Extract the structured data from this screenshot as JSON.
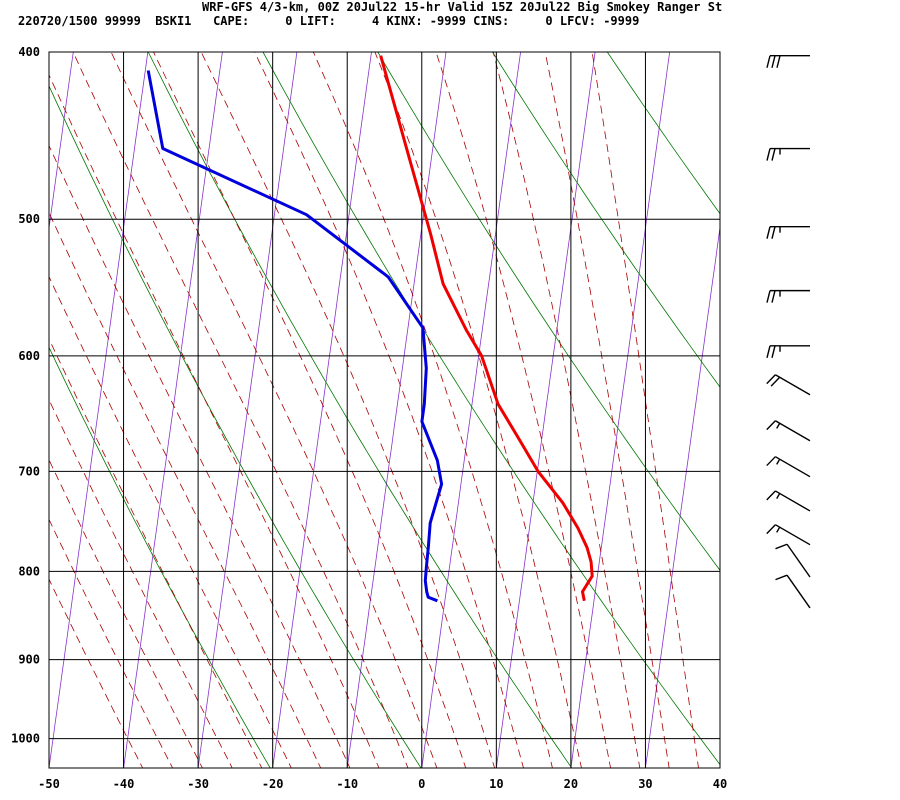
{
  "header": {
    "line1": "WRF-GFS 4/3-km, 00Z 20Jul22 15-hr Valid 15Z 20Jul22 Big Smokey Ranger St",
    "line2": "220720/1500 99999  BSKI1   CAPE:     0 LIFT:     4 KINX: -9999 CINS:     0 LFCV: -9999"
  },
  "chart_data": {
    "type": "line",
    "title": "",
    "xlabel": "",
    "ylabel": "",
    "x_ticks": [
      "-50",
      "-40",
      "-30",
      "-20",
      "-10",
      "0",
      "10",
      "20",
      "30",
      "40"
    ],
    "y_ticks": [
      "400",
      "500",
      "600",
      "700",
      "800",
      "900",
      "1000"
    ],
    "xlim": [
      -50,
      40
    ],
    "ylim_pressure": [
      400,
      1040
    ],
    "log_pressure_axis": true,
    "grid": true,
    "colors": {
      "temperature": "#ee0000",
      "dewpoint": "#0000dd",
      "isotherm": "#8833cc",
      "dry_adiabat": "#007700",
      "moist_adiabat": "#aa0000",
      "wind_barb": "#000000"
    },
    "series": [
      {
        "points": [
          {
            "p": 832,
            "t": 18.7
          },
          {
            "p": 822,
            "t": 18.3
          },
          {
            "p": 805,
            "t": 19.3
          },
          {
            "p": 790,
            "t": 18.9
          },
          {
            "p": 775,
            "t": 18.1
          },
          {
            "p": 755,
            "t": 16.5
          },
          {
            "p": 730,
            "t": 14.0
          },
          {
            "p": 700,
            "t": 10.1
          },
          {
            "p": 670,
            "t": 6.9
          },
          {
            "p": 640,
            "t": 3.5
          },
          {
            "p": 600,
            "t": 0.4
          },
          {
            "p": 580,
            "t": -2.1
          },
          {
            "p": 545,
            "t": -6.1
          },
          {
            "p": 510,
            "t": -8.7
          },
          {
            "p": 455,
            "t": -13.5
          },
          {
            "p": 402,
            "t": -18.7
          }
        ]
      },
      {
        "points": [
          {
            "p": 832,
            "t": -1.0
          },
          {
            "p": 828,
            "t": -2.3
          },
          {
            "p": 822,
            "t": -2.6
          },
          {
            "p": 810,
            "t": -3.0
          },
          {
            "p": 795,
            "t": -3.1
          },
          {
            "p": 775,
            "t": -3.2
          },
          {
            "p": 750,
            "t": -3.4
          },
          {
            "p": 712,
            "t": -2.6
          },
          {
            "p": 690,
            "t": -3.6
          },
          {
            "p": 655,
            "t": -6.4
          },
          {
            "p": 640,
            "t": -6.4
          },
          {
            "p": 610,
            "t": -6.8
          },
          {
            "p": 578,
            "t": -8.0
          },
          {
            "p": 540,
            "t": -13.6
          },
          {
            "p": 497,
            "t": -25.7
          },
          {
            "p": 455,
            "t": -46.2
          },
          {
            "p": 410,
            "t": -49.6
          }
        ]
      }
    ],
    "wind_barbs": [
      {
        "p": 402,
        "flags": 0,
        "full": 3,
        "half": 0
      },
      {
        "p": 455,
        "flags": 0,
        "full": 2,
        "half": 1
      },
      {
        "p": 505,
        "flags": 0,
        "full": 2,
        "half": 1
      },
      {
        "p": 550,
        "flags": 0,
        "full": 2,
        "half": 1
      },
      {
        "p": 592,
        "flags": 0,
        "full": 2,
        "half": 1
      },
      {
        "p": 632,
        "flags": 0,
        "full": 2,
        "half": 0
      },
      {
        "p": 672,
        "flags": 0,
        "full": 1,
        "half": 1
      },
      {
        "p": 705,
        "flags": 0,
        "full": 1,
        "half": 1
      },
      {
        "p": 738,
        "flags": 0,
        "full": 1,
        "half": 1
      },
      {
        "p": 772,
        "flags": 0,
        "full": 1,
        "half": 1
      },
      {
        "p": 806,
        "flags": 0,
        "full": 1,
        "half": 0
      },
      {
        "p": 840,
        "flags": 0,
        "full": 1,
        "half": 0
      }
    ]
  }
}
